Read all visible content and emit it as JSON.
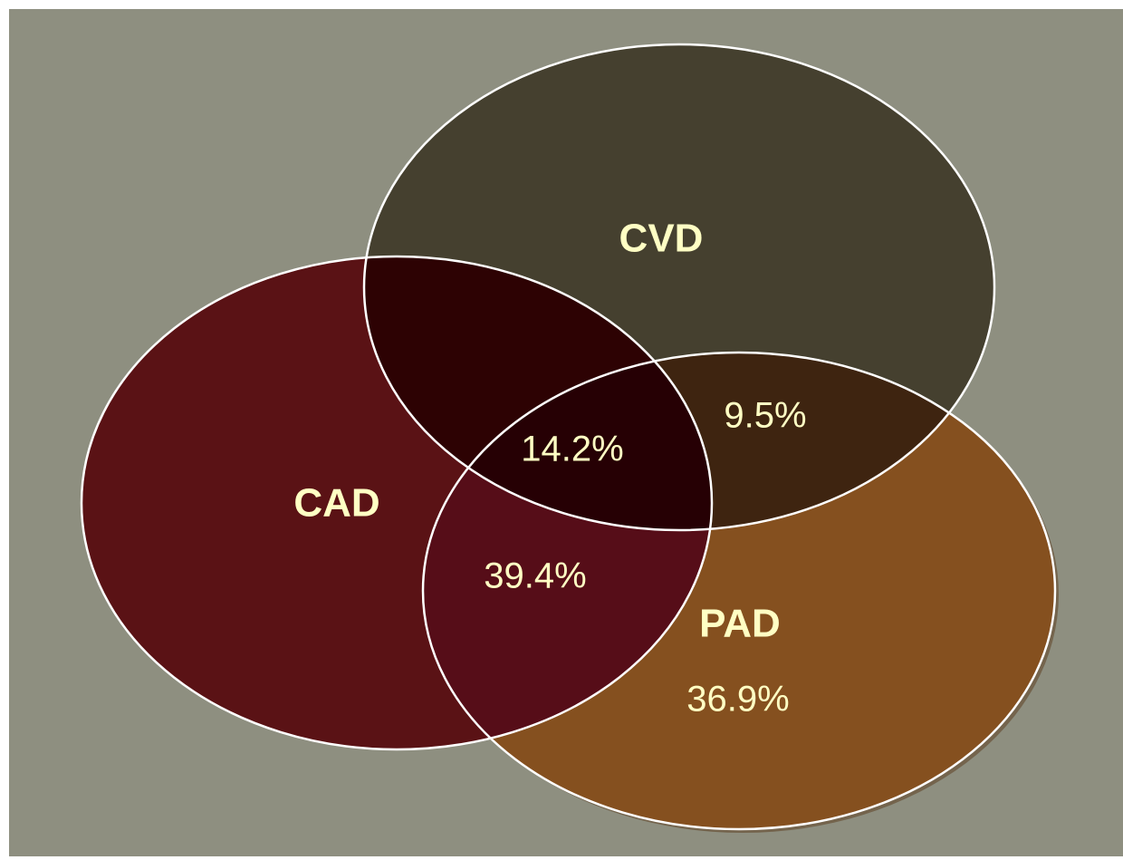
{
  "sets": [
    {
      "label": "CVD"
    },
    {
      "label": "CAD"
    },
    {
      "label": "PAD"
    }
  ],
  "regions": [
    {
      "label": "14.2%"
    },
    {
      "label": "9.5%"
    },
    {
      "label": "39.4%"
    },
    {
      "label": "36.9%"
    }
  ]
}
